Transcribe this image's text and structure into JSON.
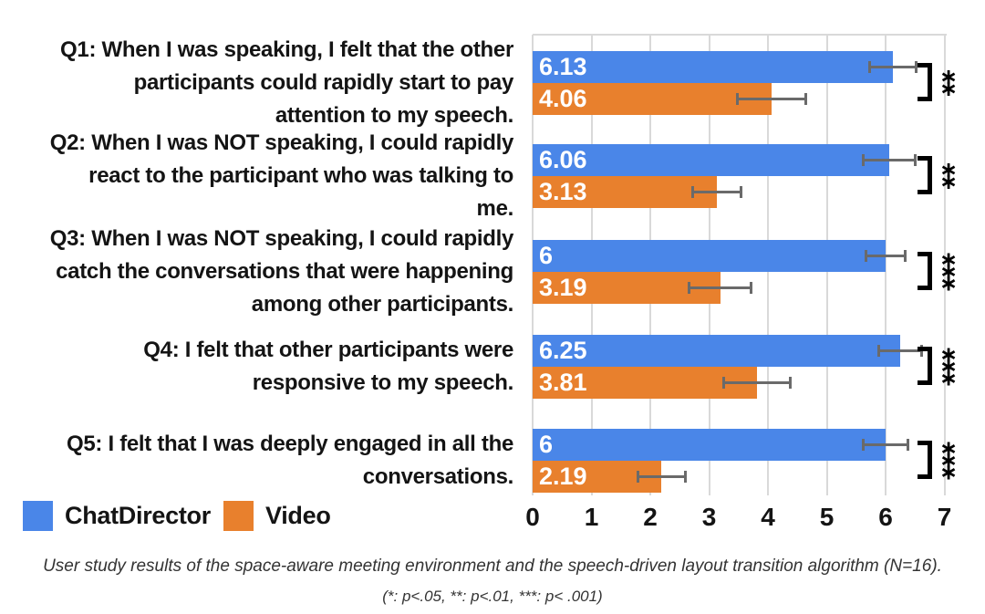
{
  "chart_data": {
    "type": "bar",
    "orientation": "horizontal",
    "title": "",
    "xlabel": "",
    "ylabel": "",
    "xlim": [
      0,
      7
    ],
    "x_ticks": [
      "0",
      "1",
      "2",
      "3",
      "4",
      "5",
      "6",
      "7"
    ],
    "grid": true,
    "legend_position": "bottom-left",
    "categories": [
      {
        "id": "Q1",
        "label_lines": [
          "Q1: When I was speaking, I felt that the other",
          "participants could rapidly start to pay",
          "attention to my speech."
        ]
      },
      {
        "id": "Q2",
        "label_lines": [
          "Q2: When I was NOT speaking, I could rapidly",
          "react to the participant who was talking to",
          "me."
        ]
      },
      {
        "id": "Q3",
        "label_lines": [
          "Q3: When I was NOT speaking, I could rapidly",
          "catch the conversations that were happening",
          "among other participants."
        ]
      },
      {
        "id": "Q4",
        "label_lines": [
          "Q4: I felt that other participants were",
          "responsive to my speech."
        ]
      },
      {
        "id": "Q5",
        "label_lines": [
          "Q5: I felt that I was deeply engaged in all the",
          "conversations."
        ]
      }
    ],
    "series": [
      {
        "name": "ChatDirector",
        "color": "#4a86e8",
        "values": [
          6.13,
          6.06,
          6,
          6.25,
          6
        ],
        "value_labels": [
          "6.13",
          "6.06",
          "6",
          "6.25",
          "6"
        ],
        "errors": [
          0.42,
          0.47,
          0.35,
          0.39,
          0.4
        ]
      },
      {
        "name": "Video",
        "color": "#e8802d",
        "values": [
          4.06,
          3.13,
          3.19,
          3.81,
          2.19
        ],
        "value_labels": [
          "4.06",
          "3.13",
          "3.19",
          "3.81",
          "2.19"
        ],
        "errors": [
          0.6,
          0.43,
          0.55,
          0.59,
          0.43
        ]
      }
    ],
    "significance": [
      "**",
      "**",
      "***",
      "***",
      "***"
    ],
    "error_bar_color": "#6a6a6a",
    "gridline_color": "#d9d9d9"
  },
  "legend": {
    "items": [
      {
        "label": "ChatDirector",
        "color": "#4a86e8"
      },
      {
        "label": "Video",
        "color": "#e8802d"
      }
    ]
  },
  "caption": {
    "line1": "User study results of the space-aware meeting environment and the speech-driven layout transition algorithm (N=16).",
    "line2": "(*: p<.05, **: p<.01, ***: p< .001)"
  }
}
